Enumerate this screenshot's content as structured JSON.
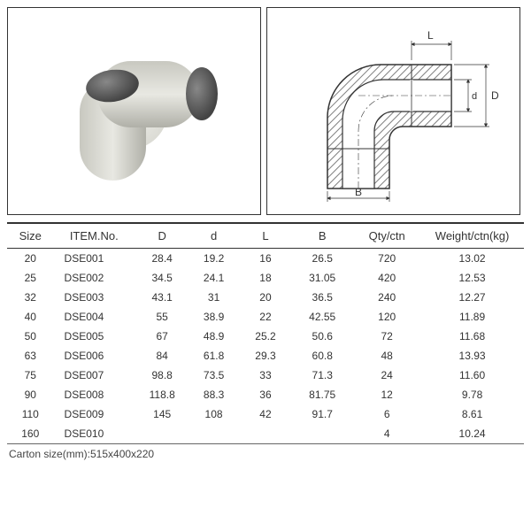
{
  "diagram": {
    "labels": {
      "L": "L",
      "D_outer": "D",
      "d_inner": "d",
      "B": "B"
    },
    "hatch_color": "#808080",
    "line_color": "#333333"
  },
  "table": {
    "columns": [
      "Size",
      "ITEM.No.",
      "D",
      "d",
      "L",
      "B",
      "Qty/ctn",
      "Weight/ctn(kg)"
    ],
    "rows": [
      [
        "20",
        "DSE001",
        "28.4",
        "19.2",
        "16",
        "26.5",
        "720",
        "13.02"
      ],
      [
        "25",
        "DSE002",
        "34.5",
        "24.1",
        "18",
        "31.05",
        "420",
        "12.53"
      ],
      [
        "32",
        "DSE003",
        "43.1",
        "31",
        "20",
        "36.5",
        "240",
        "12.27"
      ],
      [
        "40",
        "DSE004",
        "55",
        "38.9",
        "22",
        "42.55",
        "120",
        "11.89"
      ],
      [
        "50",
        "DSE005",
        "67",
        "48.9",
        "25.2",
        "50.6",
        "72",
        "11.68"
      ],
      [
        "63",
        "DSE006",
        "84",
        "61.8",
        "29.3",
        "60.8",
        "48",
        "13.93"
      ],
      [
        "75",
        "DSE007",
        "98.8",
        "73.5",
        "33",
        "71.3",
        "24",
        "11.60"
      ],
      [
        "90",
        "DSE008",
        "118.8",
        "88.3",
        "36",
        "81.75",
        "12",
        "9.78"
      ],
      [
        "110",
        "DSE009",
        "145",
        "108",
        "42",
        "91.7",
        "6",
        "8.61"
      ],
      [
        "160",
        "DSE010",
        "",
        "",
        "",
        "",
        "4",
        "10.24"
      ]
    ]
  },
  "footer": "Carton size(mm):515x400x220"
}
